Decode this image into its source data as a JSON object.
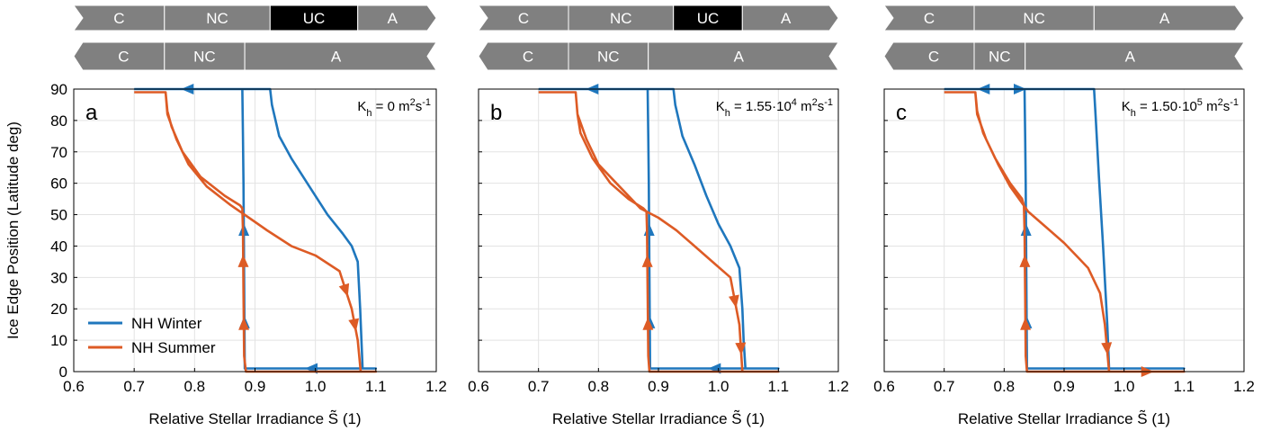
{
  "chart_data": [
    {
      "type": "line",
      "panel": "a",
      "kh_text": "K",
      "kh_sub": "h",
      "kh_value": " = 0 m",
      "kh_sup": "",
      "kh_units": "2 s-1",
      "xlabel": "Relative Stellar Irradiance S̃ (1)",
      "ylabel": "Ice Edge Position (Latitude deg)",
      "xlim": [
        0.6,
        1.2
      ],
      "ylim": [
        0,
        90
      ],
      "xticks": [
        "0.6",
        "0.7",
        "0.8",
        "0.9",
        "1.0",
        "1.1",
        "1.2"
      ],
      "yticks": [
        "0",
        "10",
        "20",
        "30",
        "40",
        "50",
        "60",
        "70",
        "80",
        "90"
      ],
      "grid": true,
      "legend_placement": "bottom-left",
      "bands": {
        "top": [
          {
            "label": "C",
            "from": 0.6,
            "to": 0.75,
            "color": "#808080"
          },
          {
            "label": "NC",
            "from": 0.75,
            "to": 0.925,
            "color": "#808080"
          },
          {
            "label": "UC",
            "from": 0.925,
            "to": 1.07,
            "color": "#000000"
          },
          {
            "label": "A",
            "from": 1.07,
            "to": 1.2,
            "color": "#808080"
          }
        ],
        "bottom": [
          {
            "label": "C",
            "from": 0.6,
            "to": 0.75,
            "color": "#808080"
          },
          {
            "label": "NC",
            "from": 0.75,
            "to": 0.883,
            "color": "#808080"
          },
          {
            "label": "A",
            "from": 0.883,
            "to": 1.2,
            "color": "#808080"
          }
        ]
      },
      "series": [
        {
          "name": "NH Winter",
          "color": "#1f77bd",
          "x": [
            0.7,
            0.925,
            0.928,
            0.94,
            0.96,
            0.99,
            1.02,
            1.045,
            1.06,
            1.07,
            1.074,
            1.078,
            1.1,
            0.889,
            0.883,
            0.882,
            0.881,
            0.88,
            0.879,
            0.7
          ],
          "y": [
            90,
            90,
            85,
            75,
            68,
            59,
            50,
            44,
            40,
            35,
            20,
            1,
            1,
            1,
            1,
            30,
            60,
            75,
            90,
            90
          ]
        },
        {
          "name": "NH Summer",
          "color": "#dd5b25",
          "x": [
            0.7,
            0.752,
            0.755,
            0.77,
            0.79,
            0.82,
            0.86,
            0.89,
            0.92,
            0.96,
            1.0,
            1.04,
            1.06,
            1.07,
            1.075,
            1.1,
            0.885,
            0.882,
            0.881,
            0.88,
            0.879,
            0.875,
            0.85,
            0.81,
            0.78,
            0.762,
            0.755,
            0.752,
            0.7
          ],
          "y": [
            89,
            89,
            82,
            74,
            66,
            59,
            53,
            49,
            45,
            40,
            37,
            32,
            20,
            10,
            0,
            0,
            0,
            5,
            25,
            45,
            52,
            53,
            56,
            62,
            70,
            78,
            83,
            89,
            89
          ]
        }
      ]
    },
    {
      "type": "line",
      "panel": "b",
      "kh_text": "K",
      "kh_sub": "h",
      "kh_value": " = 1.55·10",
      "kh_sup": "4",
      "kh_units": "m2 s-1",
      "xlabel": "Relative Stellar Irradiance S̃ (1)",
      "xlim": [
        0.6,
        1.2
      ],
      "ylim": [
        0,
        90
      ],
      "xticks": [
        "0.6",
        "0.7",
        "0.8",
        "0.9",
        "1.0",
        "1.1",
        "1.2"
      ],
      "grid": true,
      "bands": {
        "top": [
          {
            "label": "C",
            "from": 0.6,
            "to": 0.75,
            "color": "#808080"
          },
          {
            "label": "NC",
            "from": 0.75,
            "to": 0.925,
            "color": "#808080"
          },
          {
            "label": "UC",
            "from": 0.925,
            "to": 1.04,
            "color": "#000000"
          },
          {
            "label": "A",
            "from": 1.04,
            "to": 1.2,
            "color": "#808080"
          }
        ],
        "bottom": [
          {
            "label": "C",
            "from": 0.6,
            "to": 0.75,
            "color": "#808080"
          },
          {
            "label": "NC",
            "from": 0.75,
            "to": 0.883,
            "color": "#808080"
          },
          {
            "label": "A",
            "from": 0.883,
            "to": 1.2,
            "color": "#808080"
          }
        ]
      },
      "series": [
        {
          "name": "NH Winter",
          "color": "#1f77bd",
          "x": [
            0.7,
            0.925,
            0.928,
            0.94,
            0.96,
            0.98,
            1.0,
            1.02,
            1.035,
            1.04,
            1.042,
            1.045,
            1.1,
            0.89,
            0.886,
            0.885,
            0.884,
            0.883,
            0.882,
            0.7
          ],
          "y": [
            90,
            90,
            85,
            75,
            66,
            56,
            47,
            40,
            33,
            20,
            10,
            1,
            1,
            1,
            1,
            30,
            60,
            75,
            90,
            90
          ]
        },
        {
          "name": "NH Summer",
          "color": "#dd5b25",
          "x": [
            0.7,
            0.762,
            0.765,
            0.78,
            0.8,
            0.83,
            0.87,
            0.9,
            0.93,
            0.96,
            0.99,
            1.02,
            1.035,
            1.04,
            1.1,
            0.885,
            0.883,
            0.882,
            0.881,
            0.88,
            0.875,
            0.85,
            0.82,
            0.79,
            0.77,
            0.765,
            0.762,
            0.7
          ],
          "y": [
            89,
            89,
            82,
            74,
            66,
            60,
            52,
            49,
            45,
            40,
            35,
            30,
            15,
            0,
            0,
            0,
            5,
            25,
            45,
            51,
            52,
            55,
            60,
            68,
            76,
            82,
            89,
            89
          ]
        }
      ]
    },
    {
      "type": "line",
      "panel": "c",
      "kh_text": "K",
      "kh_sub": "h",
      "kh_value": " = 1.50·10",
      "kh_sup": "5",
      "kh_units": "m2 s-1",
      "xlabel": "Relative Stellar Irradiance S̃ (1)",
      "xlim": [
        0.6,
        1.2
      ],
      "ylim": [
        0,
        90
      ],
      "xticks": [
        "0.6",
        "0.7",
        "0.8",
        "0.9",
        "1.0",
        "1.1",
        "1.2"
      ],
      "grid": true,
      "bands": {
        "top": [
          {
            "label": "C",
            "from": 0.6,
            "to": 0.75,
            "color": "#808080"
          },
          {
            "label": "NC",
            "from": 0.75,
            "to": 0.95,
            "color": "#808080"
          },
          {
            "label": "A",
            "from": 0.95,
            "to": 1.2,
            "color": "#808080"
          }
        ],
        "bottom": [
          {
            "label": "C",
            "from": 0.6,
            "to": 0.75,
            "color": "#808080"
          },
          {
            "label": "NC",
            "from": 0.75,
            "to": 0.835,
            "color": "#808080"
          },
          {
            "label": "A",
            "from": 0.835,
            "to": 1.2,
            "color": "#808080"
          }
        ]
      },
      "series": [
        {
          "name": "NH Winter",
          "color": "#1f77bd",
          "x": [
            0.7,
            0.95,
            0.953,
            0.958,
            0.965,
            0.972,
            0.975,
            1.1,
            0.842,
            0.838,
            0.837,
            0.836,
            0.835,
            0.834,
            0.7
          ],
          "y": [
            90,
            90,
            80,
            62,
            40,
            15,
            1,
            1,
            1,
            1,
            30,
            60,
            75,
            90,
            90
          ]
        },
        {
          "name": "NH Summer",
          "color": "#dd5b25",
          "x": [
            0.7,
            0.752,
            0.755,
            0.77,
            0.79,
            0.81,
            0.84,
            0.87,
            0.9,
            0.925,
            0.94,
            0.96,
            0.968,
            0.975,
            1.1,
            0.838,
            0.836,
            0.835,
            0.834,
            0.833,
            0.83,
            0.81,
            0.785,
            0.765,
            0.755,
            0.752,
            0.7
          ],
          "y": [
            89,
            89,
            82,
            74,
            66,
            59,
            51,
            46,
            41,
            36,
            33,
            25,
            15,
            0,
            0,
            0,
            5,
            25,
            45,
            53,
            55,
            60,
            68,
            76,
            83,
            89,
            89
          ]
        }
      ]
    }
  ]
}
